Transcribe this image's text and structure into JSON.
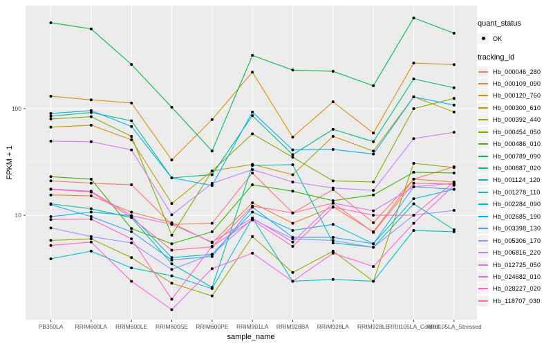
{
  "theme": {
    "panel_background": "#EBEBEB",
    "grid_color": "#FFFFFF",
    "axis_text_color": "#4D4D4D",
    "tick_color": "#333333",
    "point_color": "#000000",
    "legend_key_background": "#F2F2F2"
  },
  "legend": {
    "quant_status_title": "quant_status",
    "quant_status_items": [
      {
        "label": "OK",
        "marker": "black-point"
      }
    ],
    "tracking_id_title": "tracking_id"
  },
  "chart_data": {
    "type": "line",
    "title": "",
    "xlabel": "sample_name",
    "ylabel": "FPKM + 1",
    "y_scale": "log10",
    "ylim": [
      1.05,
      950
    ],
    "grid": "on",
    "legend_position": "right",
    "yticks": [
      10,
      100
    ],
    "ytick_labels": [
      "10",
      "100"
    ],
    "y_minor_breaks": [
      3.162,
      31.62,
      316.2
    ],
    "categories": [
      "PB350LA",
      "RRIM600LA",
      "RRIM600LE",
      "RRIM600SE",
      "RRIM600PE",
      "RRIM901LA",
      "RRIM928BA",
      "RRIM928LA",
      "RRIM928LE",
      "RRII105LA_Control",
      "RRII105LA_Stressed"
    ],
    "marker": {
      "shape": "circle",
      "color": "#000000",
      "radius": 2
    },
    "series": [
      {
        "name": "Hb_000046_280",
        "color": "#F8766D",
        "values": [
          21.0,
          20.0,
          19.3,
          8.2,
          8.4,
          24.9,
          10.5,
          17.4,
          8.5,
          21.8,
          28.5
        ]
      },
      {
        "name": "Hb_000109_090",
        "color": "#EA8331",
        "values": [
          15.5,
          15.2,
          10.7,
          8.5,
          5.5,
          13.1,
          8.4,
          12.0,
          7.0,
          21.8,
          20.5
        ]
      },
      {
        "name": "Hb_000120_760",
        "color": "#D89000",
        "values": [
          131,
          121,
          113,
          33,
          79,
          220,
          54,
          116,
          59,
          268,
          259
        ]
      },
      {
        "name": "Hb_000300_610",
        "color": "#C09B00",
        "values": [
          67,
          70,
          51,
          12.9,
          26,
          30,
          24,
          55,
          40,
          129,
          93
        ]
      },
      {
        "name": "Hb_000392_440",
        "color": "#A3A500",
        "values": [
          5.8,
          6.0,
          4.0,
          2.3,
          1.75,
          6.3,
          2.9,
          4.6,
          2.4,
          30.7,
          28
        ]
      },
      {
        "name": "Hb_000454_050",
        "color": "#7CAE00",
        "values": [
          80,
          84,
          55,
          6.5,
          26,
          58,
          35,
          21,
          20.5,
          100,
          125
        ]
      },
      {
        "name": "Hb_000486_010",
        "color": "#39B600",
        "values": [
          23,
          21.8,
          7.5,
          5.4,
          7.0,
          19.3,
          16.8,
          13.7,
          15.5,
          25.3,
          24.9
        ]
      },
      {
        "name": "Hb_000789_090",
        "color": "#00BB4E",
        "values": [
          640,
          560,
          260,
          103,
          40,
          316,
          230,
          224,
          164,
          710,
          510
        ]
      },
      {
        "name": "Hb_000887_020",
        "color": "#00BF7D",
        "values": [
          85,
          92,
          77,
          22.4,
          24,
          86,
          37,
          64,
          49,
          190,
          157
        ]
      },
      {
        "name": "Hb_001124_120",
        "color": "#00C1A3",
        "values": [
          12.8,
          11.5,
          9.5,
          3.5,
          2.1,
          29.3,
          29.8,
          5.5,
          5.0,
          12.8,
          7.3
        ]
      },
      {
        "name": "Hb_001278_110",
        "color": "#00BFC4",
        "values": [
          3.9,
          4.6,
          3.2,
          2.7,
          2.05,
          9.4,
          2.4,
          2.5,
          2.4,
          7.2,
          7.0
        ]
      },
      {
        "name": "Hb_002284_090",
        "color": "#00BAE0",
        "values": [
          9.7,
          10.7,
          9.9,
          4.0,
          4.3,
          10.7,
          7.2,
          8.2,
          5.4,
          14.3,
          17.5
        ]
      },
      {
        "name": "Hb_002685_190",
        "color": "#00B0F6",
        "values": [
          90,
          96,
          68,
          22.4,
          19,
          93,
          41,
          41.4,
          37.5,
          129,
          108
        ]
      },
      {
        "name": "Hb_003398_130",
        "color": "#35A2FF",
        "values": [
          12.6,
          9.7,
          7.0,
          3.8,
          4.1,
          11.9,
          6.2,
          6.2,
          5.4,
          18.5,
          17.5
        ]
      },
      {
        "name": "Hb_005306_170",
        "color": "#9590FF",
        "values": [
          7.6,
          6.3,
          5.5,
          3.1,
          4.3,
          9.2,
          6.0,
          5.8,
          5.0,
          10.0,
          11.1
        ]
      },
      {
        "name": "Hb_006816_220",
        "color": "#C77CFF",
        "values": [
          49.5,
          49,
          41,
          10.1,
          19.9,
          26.8,
          20.5,
          18,
          17.1,
          52.4,
          60
        ]
      },
      {
        "name": "Hb_012725_050",
        "color": "#E76BF3",
        "values": [
          17.6,
          16.8,
          9.9,
          8.2,
          5.6,
          9.4,
          5.6,
          13,
          11,
          18.5,
          19.9
        ]
      },
      {
        "name": "Hb_024682_010",
        "color": "#FA62DB",
        "values": [
          5.2,
          5.6,
          2.4,
          1.3,
          3.15,
          4.4,
          2.4,
          4.4,
          3.3,
          8.4,
          19.1
        ]
      },
      {
        "name": "Hb_028227_020",
        "color": "#FF62BC",
        "values": [
          9.1,
          9.2,
          6.0,
          1.63,
          5.1,
          9.0,
          5.1,
          11.9,
          10.0,
          10.0,
          20.5
        ]
      },
      {
        "name": "Hb_118707_030",
        "color": "#FF6A98",
        "values": [
          17.5,
          16.5,
          9.5,
          4.7,
          5.05,
          12.2,
          10.5,
          13.0,
          6.9,
          20.0,
          19.5
        ]
      }
    ]
  }
}
